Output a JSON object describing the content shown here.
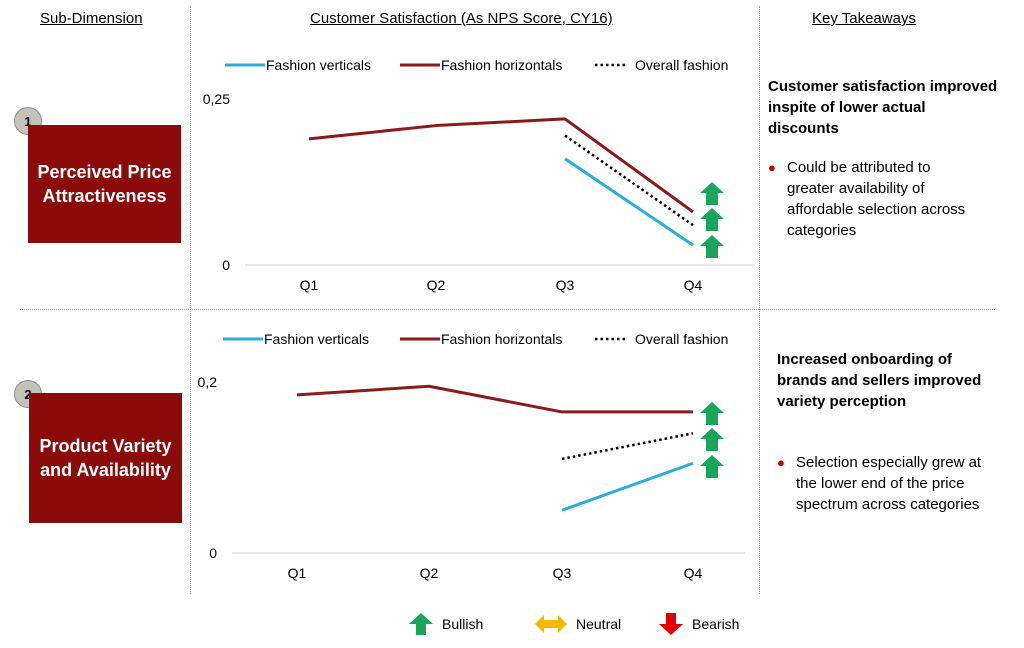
{
  "headers": {
    "sub_dimension": "Sub-Dimension",
    "chart_title": "Customer Satisfaction (As NPS Score, CY16)",
    "takeaways": "Key Takeaways"
  },
  "legend_items": [
    "Fashion verticals",
    "Fashion horizontals",
    "Overall fashion"
  ],
  "colors": {
    "fashion_verticals": "#2aaed8",
    "fashion_horizontals": "#8b1a1a",
    "overall_fashion": "#000000",
    "box": "#8b0a0a",
    "bullish": "#1aa65a",
    "neutral": "#f5b800",
    "bearish": "#e00000"
  },
  "rows": [
    {
      "number": "1",
      "dimension": "Perceived Price Attractiveness",
      "takeaway_heading": "Customer satisfaction improved inspite of lower actual discounts",
      "takeaway_bullet": "Could be attributed to greater availability of affordable selection across categories",
      "trend_icons": [
        "bullish",
        "bullish",
        "bullish"
      ]
    },
    {
      "number": "2",
      "dimension": "Product Variety and Availability",
      "takeaway_heading": "Increased onboarding of brands and sellers improved variety perception",
      "takeaway_bullet": "Selection especially grew at the lower end of the price spectrum across categories",
      "trend_icons": [
        "bullish",
        "bullish",
        "bullish"
      ]
    }
  ],
  "bottom_legend": [
    {
      "icon": "bullish",
      "label": "Bullish"
    },
    {
      "icon": "neutral",
      "label": "Neutral"
    },
    {
      "icon": "bearish",
      "label": "Bearish"
    }
  ],
  "chart_data": [
    {
      "type": "line",
      "categories": [
        "Q1",
        "Q2",
        "Q3",
        "Q4"
      ],
      "ylim": [
        0,
        0.25
      ],
      "y_tick_labels": [
        "0",
        "0,25"
      ],
      "grid": false,
      "legend_position": "top",
      "series": [
        {
          "name": "Fashion verticals",
          "values": [
            null,
            null,
            0.16,
            0.03
          ]
        },
        {
          "name": "Fashion horizontals",
          "values": [
            0.19,
            0.21,
            0.22,
            0.08
          ]
        },
        {
          "name": "Overall fashion",
          "values": [
            null,
            null,
            0.195,
            0.06
          ]
        }
      ]
    },
    {
      "type": "line",
      "categories": [
        "Q1",
        "Q2",
        "Q3",
        "Q4"
      ],
      "ylim": [
        0,
        0.2
      ],
      "y_tick_labels": [
        "0",
        "0,2"
      ],
      "grid": false,
      "legend_position": "top",
      "series": [
        {
          "name": "Fashion verticals",
          "values": [
            null,
            null,
            0.05,
            0.105
          ]
        },
        {
          "name": "Fashion horizontals",
          "values": [
            0.185,
            0.195,
            0.165,
            0.165
          ]
        },
        {
          "name": "Overall fashion",
          "values": [
            null,
            null,
            0.11,
            0.14
          ]
        }
      ]
    }
  ]
}
